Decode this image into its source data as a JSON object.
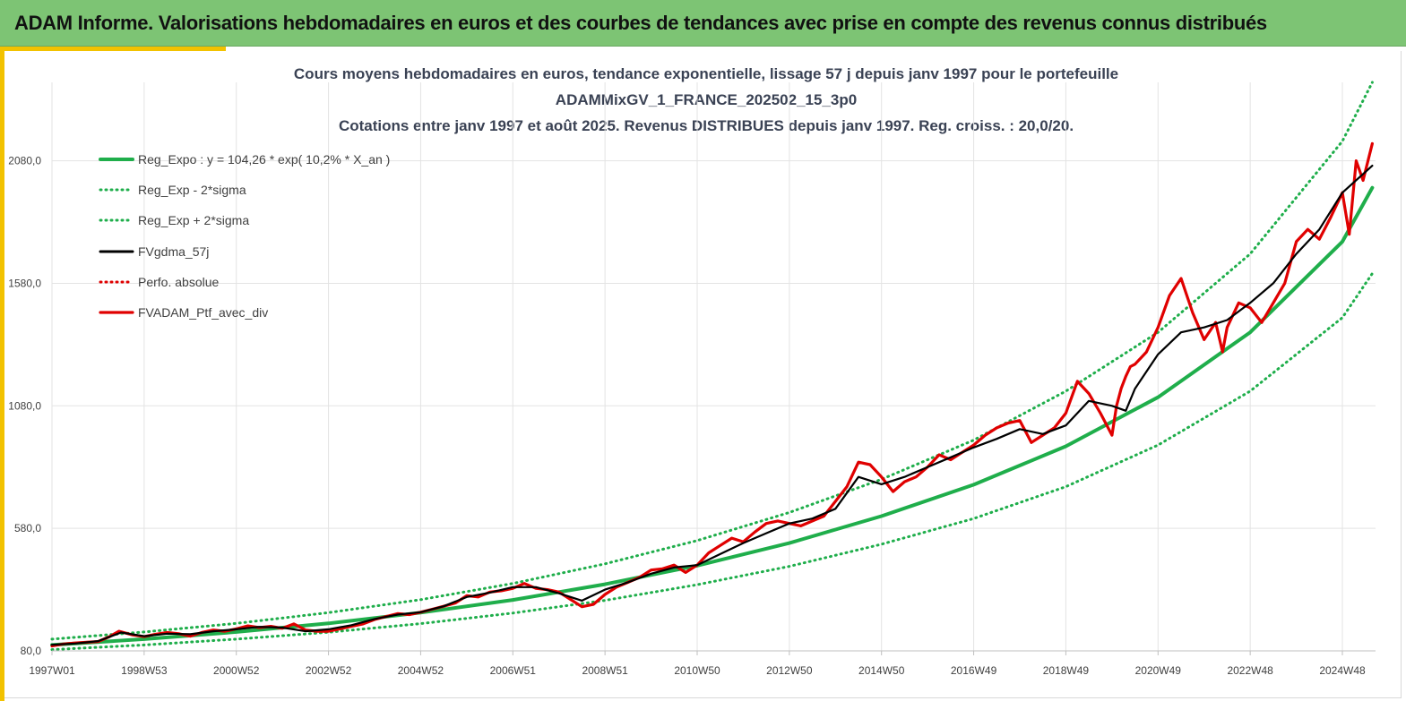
{
  "header": {
    "title": "ADAM Informe. Valorisations hebdomadaires en euros et des courbes de tendances avec prise en compte des revenus connus distribués"
  },
  "colors": {
    "banner": "#7dc474",
    "accent": "#f2c200",
    "trend": "#1fae4b",
    "portfolio": "#e00000",
    "smooth": "#000000",
    "grid": "#e3e3e3"
  },
  "chart_data": {
    "type": "line",
    "title_lines": [
      "Cours moyens hebdomadaires  en euros, tendance exponentielle, lissage 57 j depuis janv 1997 pour le portefeuille",
      "ADAMMixGV_1_FRANCE_202502_15_3p0",
      "Cotations  entre janv 1997 et août 2025. Revenus DISTRIBUES depuis janv 1997. Reg. croiss. : 20,0/20."
    ],
    "xlabel": "",
    "ylabel": "",
    "xlim": [
      1997.0,
      2025.65
    ],
    "ylim": [
      80,
      2400
    ],
    "y_ticks": [
      80,
      580,
      1080,
      1580,
      2080
    ],
    "y_tick_labels": [
      "80,0",
      "580,0",
      "1080,0",
      "1580,0",
      "2080,0"
    ],
    "x_tick_labels": [
      "1997W01",
      "1998W53",
      "2000W52",
      "2002W52",
      "2004W52",
      "2006W51",
      "2008W51",
      "2010W50",
      "2012W50",
      "2014W50",
      "2016W49",
      "2018W49",
      "2020W49",
      "2022W48",
      "2024W48"
    ],
    "x_tick_years": [
      1997.0,
      1999.0,
      2001.0,
      2003.0,
      2005.0,
      2007.0,
      2009.0,
      2011.0,
      2013.0,
      2015.0,
      2017.0,
      2019.0,
      2021.0,
      2023.0,
      2025.0
    ],
    "grid": true,
    "legend_position": "top-left",
    "series": [
      {
        "name": "Reg_Expo : y = 104,26 * exp( 10,2% *  X_an )",
        "style": "solid",
        "color": "#1fae4b",
        "x": [
          1997,
          1999,
          2001,
          2003,
          2005,
          2007,
          2009,
          2011,
          2013,
          2015,
          2017,
          2019,
          2021,
          2023,
          2025,
          2025.65
        ],
        "values": [
          104,
          128,
          157,
          192,
          236,
          288,
          352,
          428,
          520,
          630,
          758,
          915,
          1115,
          1380,
          1750,
          1970
        ]
      },
      {
        "name": "Reg_Exp - 2*sigma",
        "style": "dotted",
        "color": "#1fae4b",
        "x": [
          1997,
          1999,
          2001,
          2003,
          2005,
          2007,
          2009,
          2011,
          2013,
          2015,
          2017,
          2019,
          2021,
          2023,
          2025,
          2025.65
        ],
        "values": [
          85,
          104,
          128,
          156,
          191,
          234,
          286,
          350,
          425,
          515,
          620,
          750,
          920,
          1140,
          1440,
          1620
        ]
      },
      {
        "name": "Reg_Exp + 2*sigma",
        "style": "dotted",
        "color": "#1fae4b",
        "x": [
          1997,
          1999,
          2001,
          2003,
          2005,
          2007,
          2009,
          2011,
          2013,
          2015,
          2017,
          2019,
          2021,
          2023,
          2025,
          2025.65
        ],
        "values": [
          128,
          157,
          192,
          236,
          289,
          355,
          435,
          530,
          645,
          780,
          940,
          1140,
          1380,
          1700,
          2160,
          2400
        ]
      },
      {
        "name": "FVgdma_57j",
        "style": "solid",
        "color": "#000000",
        "x": [
          1997.0,
          1997.5,
          1998.0,
          1998.5,
          1999.0,
          1999.5,
          2000.0,
          2000.5,
          2001.0,
          2001.5,
          2002.0,
          2002.5,
          2003.0,
          2003.5,
          2004.0,
          2004.5,
          2005.0,
          2005.5,
          2006.0,
          2006.5,
          2007.0,
          2007.5,
          2008.0,
          2008.5,
          2009.0,
          2009.5,
          2010.0,
          2010.5,
          2011.0,
          2011.5,
          2012.0,
          2012.5,
          2013.0,
          2013.5,
          2014.0,
          2014.5,
          2015.0,
          2015.5,
          2016.0,
          2016.5,
          2017.0,
          2017.5,
          2018.0,
          2018.5,
          2019.0,
          2019.5,
          2020.0,
          2020.3,
          2020.5,
          2021.0,
          2021.5,
          2022.0,
          2022.5,
          2023.0,
          2023.5,
          2024.0,
          2024.5,
          2025.0,
          2025.65
        ],
        "values": [
          105,
          110,
          120,
          155,
          140,
          150,
          148,
          160,
          168,
          178,
          175,
          160,
          168,
          185,
          210,
          228,
          238,
          262,
          300,
          318,
          340,
          340,
          315,
          285,
          330,
          360,
          395,
          420,
          430,
          475,
          520,
          560,
          600,
          620,
          660,
          790,
          760,
          790,
          830,
          870,
          910,
          945,
          985,
          965,
          1000,
          1100,
          1080,
          1060,
          1150,
          1290,
          1380,
          1400,
          1430,
          1500,
          1580,
          1700,
          1800,
          1950,
          2060
        ]
      },
      {
        "name": "Perfo. absolue",
        "style": "dotted",
        "color": "#e00000",
        "x": [],
        "values": []
      },
      {
        "name": "FVADAM_Ptf_avec_div",
        "style": "solid",
        "color": "#e00000",
        "x": [
          1997.0,
          1997.25,
          1997.5,
          1997.75,
          1998.0,
          1998.25,
          1998.45,
          1998.75,
          1999.0,
          1999.25,
          1999.5,
          1999.75,
          2000.0,
          2000.25,
          2000.5,
          2000.75,
          2001.0,
          2001.25,
          2001.5,
          2001.75,
          2002.0,
          2002.25,
          2002.5,
          2002.75,
          2003.0,
          2003.25,
          2003.5,
          2003.75,
          2004.0,
          2004.25,
          2004.5,
          2004.75,
          2005.0,
          2005.25,
          2005.5,
          2005.75,
          2006.0,
          2006.25,
          2006.5,
          2006.75,
          2007.0,
          2007.25,
          2007.5,
          2007.75,
          2008.0,
          2008.25,
          2008.5,
          2008.75,
          2009.0,
          2009.25,
          2009.5,
          2009.75,
          2010.0,
          2010.25,
          2010.5,
          2010.75,
          2011.0,
          2011.25,
          2011.5,
          2011.75,
          2012.0,
          2012.25,
          2012.5,
          2012.75,
          2013.0,
          2013.25,
          2013.5,
          2013.75,
          2014.0,
          2014.25,
          2014.5,
          2014.75,
          2015.0,
          2015.25,
          2015.5,
          2015.75,
          2016.0,
          2016.25,
          2016.5,
          2016.75,
          2017.0,
          2017.25,
          2017.5,
          2017.75,
          2018.0,
          2018.25,
          2018.5,
          2018.75,
          2019.0,
          2019.25,
          2019.5,
          2019.75,
          2020.0,
          2020.1,
          2020.2,
          2020.3,
          2020.4,
          2020.5,
          2020.75,
          2021.0,
          2021.25,
          2021.5,
          2021.75,
          2022.0,
          2022.25,
          2022.4,
          2022.5,
          2022.75,
          2023.0,
          2023.25,
          2023.5,
          2023.75,
          2024.0,
          2024.25,
          2024.5,
          2024.75,
          2025.0,
          2025.15,
          2025.3,
          2025.45,
          2025.65
        ],
        "values": [
          100,
          108,
          112,
          115,
          118,
          138,
          160,
          145,
          138,
          148,
          155,
          150,
          140,
          155,
          165,
          160,
          170,
          182,
          175,
          180,
          172,
          190,
          165,
          160,
          160,
          170,
          180,
          190,
          208,
          220,
          232,
          228,
          238,
          250,
          262,
          275,
          305,
          300,
          320,
          325,
          335,
          355,
          335,
          330,
          320,
          290,
          260,
          270,
          310,
          340,
          360,
          380,
          410,
          415,
          430,
          400,
          430,
          480,
          510,
          540,
          525,
          565,
          600,
          610,
          600,
          590,
          610,
          630,
          690,
          750,
          850,
          840,
          790,
          730,
          770,
          790,
          830,
          880,
          860,
          890,
          920,
          960,
          990,
          1010,
          1020,
          930,
          960,
          990,
          1050,
          1180,
          1130,
          1050,
          960,
          1080,
          1150,
          1200,
          1240,
          1250,
          1300,
          1400,
          1530,
          1600,
          1460,
          1350,
          1420,
          1300,
          1400,
          1500,
          1480,
          1420,
          1500,
          1580,
          1750,
          1800,
          1760,
          1850,
          1950,
          1780,
          2080,
          2000,
          2150
        ]
      }
    ]
  }
}
